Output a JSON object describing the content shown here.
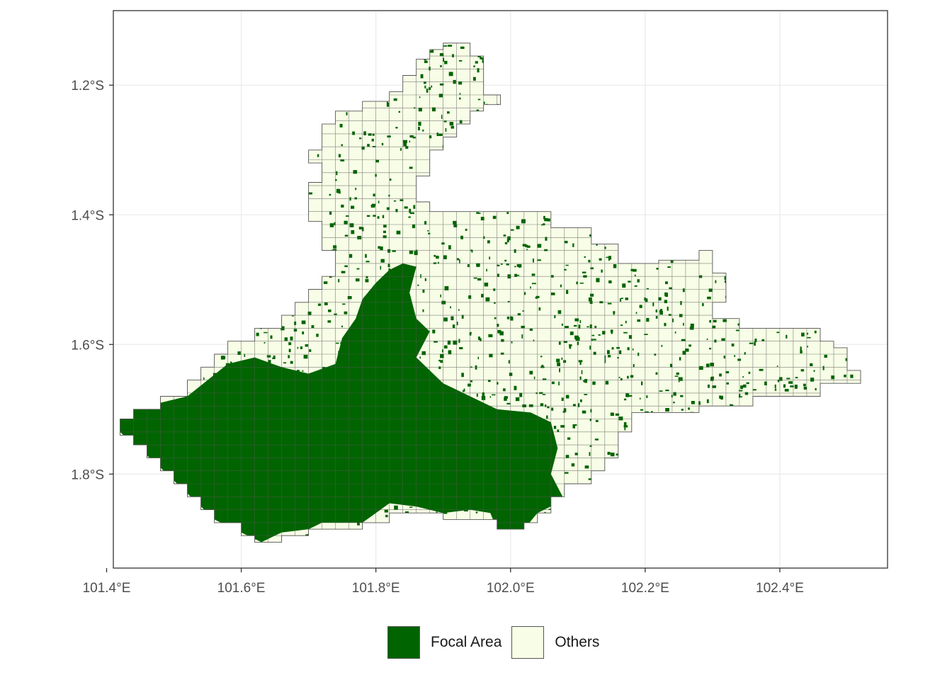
{
  "chart_data": {
    "type": "map",
    "map_type": "grid-cell choropleth",
    "title": "",
    "xlabel": "",
    "ylabel": "",
    "xlim": [
      101.41,
      102.56
    ],
    "ylim": [
      -1.945,
      -1.085
    ],
    "grid": true,
    "cell_size_deg": 0.02,
    "x_ticks": [
      {
        "value": 101.4,
        "label": "101.4°E"
      },
      {
        "value": 101.6,
        "label": "101.6°E"
      },
      {
        "value": 101.8,
        "label": "101.8°E"
      },
      {
        "value": 102.0,
        "label": "102.0°E"
      },
      {
        "value": 102.2,
        "label": "102.2°E"
      },
      {
        "value": 102.4,
        "label": "102.4°E"
      }
    ],
    "y_ticks": [
      {
        "value": -1.2,
        "label": "1.2°S"
      },
      {
        "value": -1.4,
        "label": "1.4°S"
      },
      {
        "value": -1.6,
        "label": "1.6°S"
      },
      {
        "value": -1.8,
        "label": "1.8°S"
      }
    ],
    "outline_polygon": [
      [
        101.9,
        -1.135
      ],
      [
        101.94,
        -1.135
      ],
      [
        101.94,
        -1.155
      ],
      [
        101.96,
        -1.155
      ],
      [
        101.96,
        -1.215
      ],
      [
        101.985,
        -1.215
      ],
      [
        101.985,
        -1.23
      ],
      [
        101.96,
        -1.23
      ],
      [
        101.96,
        -1.24
      ],
      [
        101.94,
        -1.24
      ],
      [
        101.94,
        -1.26
      ],
      [
        101.92,
        -1.26
      ],
      [
        101.92,
        -1.28
      ],
      [
        101.9,
        -1.28
      ],
      [
        101.9,
        -1.3
      ],
      [
        101.88,
        -1.3
      ],
      [
        101.88,
        -1.34
      ],
      [
        101.86,
        -1.34
      ],
      [
        101.86,
        -1.38
      ],
      [
        101.88,
        -1.38
      ],
      [
        101.88,
        -1.395
      ],
      [
        102.06,
        -1.395
      ],
      [
        102.06,
        -1.42
      ],
      [
        102.12,
        -1.42
      ],
      [
        102.12,
        -1.445
      ],
      [
        102.16,
        -1.445
      ],
      [
        102.16,
        -1.475
      ],
      [
        102.22,
        -1.475
      ],
      [
        102.22,
        -1.47
      ],
      [
        102.28,
        -1.47
      ],
      [
        102.28,
        -1.455
      ],
      [
        102.3,
        -1.455
      ],
      [
        102.3,
        -1.49
      ],
      [
        102.32,
        -1.49
      ],
      [
        102.32,
        -1.535
      ],
      [
        102.3,
        -1.535
      ],
      [
        102.3,
        -1.56
      ],
      [
        102.34,
        -1.56
      ],
      [
        102.34,
        -1.575
      ],
      [
        102.46,
        -1.575
      ],
      [
        102.46,
        -1.595
      ],
      [
        102.48,
        -1.595
      ],
      [
        102.48,
        -1.605
      ],
      [
        102.5,
        -1.605
      ],
      [
        102.5,
        -1.64
      ],
      [
        102.52,
        -1.64
      ],
      [
        102.52,
        -1.66
      ],
      [
        102.46,
        -1.66
      ],
      [
        102.46,
        -1.68
      ],
      [
        102.36,
        -1.68
      ],
      [
        102.36,
        -1.695
      ],
      [
        102.28,
        -1.695
      ],
      [
        102.28,
        -1.705
      ],
      [
        102.18,
        -1.705
      ],
      [
        102.18,
        -1.735
      ],
      [
        102.16,
        -1.735
      ],
      [
        102.16,
        -1.775
      ],
      [
        102.14,
        -1.775
      ],
      [
        102.14,
        -1.795
      ],
      [
        102.12,
        -1.795
      ],
      [
        102.12,
        -1.815
      ],
      [
        102.08,
        -1.815
      ],
      [
        102.08,
        -1.835
      ],
      [
        102.06,
        -1.835
      ],
      [
        102.06,
        -1.86
      ],
      [
        102.04,
        -1.86
      ],
      [
        102.04,
        -1.875
      ],
      [
        102.02,
        -1.875
      ],
      [
        102.02,
        -1.885
      ],
      [
        101.98,
        -1.885
      ],
      [
        101.98,
        -1.87
      ],
      [
        101.9,
        -1.87
      ],
      [
        101.9,
        -1.86
      ],
      [
        101.82,
        -1.86
      ],
      [
        101.82,
        -1.875
      ],
      [
        101.78,
        -1.875
      ],
      [
        101.78,
        -1.885
      ],
      [
        101.7,
        -1.885
      ],
      [
        101.7,
        -1.895
      ],
      [
        101.66,
        -1.895
      ],
      [
        101.66,
        -1.905
      ],
      [
        101.62,
        -1.905
      ],
      [
        101.62,
        -1.895
      ],
      [
        101.6,
        -1.895
      ],
      [
        101.6,
        -1.875
      ],
      [
        101.56,
        -1.875
      ],
      [
        101.56,
        -1.855
      ],
      [
        101.54,
        -1.855
      ],
      [
        101.54,
        -1.835
      ],
      [
        101.52,
        -1.835
      ],
      [
        101.52,
        -1.815
      ],
      [
        101.5,
        -1.815
      ],
      [
        101.5,
        -1.795
      ],
      [
        101.48,
        -1.795
      ],
      [
        101.48,
        -1.775
      ],
      [
        101.46,
        -1.775
      ],
      [
        101.46,
        -1.755
      ],
      [
        101.44,
        -1.755
      ],
      [
        101.44,
        -1.74
      ],
      [
        101.42,
        -1.74
      ],
      [
        101.42,
        -1.715
      ],
      [
        101.44,
        -1.715
      ],
      [
        101.44,
        -1.7
      ],
      [
        101.48,
        -1.7
      ],
      [
        101.48,
        -1.68
      ],
      [
        101.52,
        -1.68
      ],
      [
        101.52,
        -1.655
      ],
      [
        101.54,
        -1.655
      ],
      [
        101.54,
        -1.635
      ],
      [
        101.56,
        -1.635
      ],
      [
        101.56,
        -1.615
      ],
      [
        101.58,
        -1.615
      ],
      [
        101.58,
        -1.595
      ],
      [
        101.62,
        -1.595
      ],
      [
        101.62,
        -1.575
      ],
      [
        101.66,
        -1.575
      ],
      [
        101.66,
        -1.555
      ],
      [
        101.68,
        -1.555
      ],
      [
        101.68,
        -1.535
      ],
      [
        101.7,
        -1.535
      ],
      [
        101.7,
        -1.515
      ],
      [
        101.72,
        -1.515
      ],
      [
        101.72,
        -1.495
      ],
      [
        101.74,
        -1.495
      ],
      [
        101.74,
        -1.455
      ],
      [
        101.72,
        -1.455
      ],
      [
        101.72,
        -1.41
      ],
      [
        101.7,
        -1.41
      ],
      [
        101.7,
        -1.35
      ],
      [
        101.72,
        -1.35
      ],
      [
        101.72,
        -1.32
      ],
      [
        101.7,
        -1.32
      ],
      [
        101.7,
        -1.3
      ],
      [
        101.72,
        -1.3
      ],
      [
        101.72,
        -1.26
      ],
      [
        101.74,
        -1.26
      ],
      [
        101.74,
        -1.24
      ],
      [
        101.78,
        -1.24
      ],
      [
        101.78,
        -1.225
      ],
      [
        101.82,
        -1.225
      ],
      [
        101.82,
        -1.21
      ],
      [
        101.84,
        -1.21
      ],
      [
        101.84,
        -1.185
      ],
      [
        101.86,
        -1.185
      ],
      [
        101.86,
        -1.16
      ],
      [
        101.88,
        -1.16
      ],
      [
        101.88,
        -1.145
      ],
      [
        101.9,
        -1.145
      ]
    ],
    "focal_area_polygon": [
      [
        101.42,
        -1.715
      ],
      [
        101.44,
        -1.7
      ],
      [
        101.48,
        -1.69
      ],
      [
        101.52,
        -1.68
      ],
      [
        101.55,
        -1.655
      ],
      [
        101.58,
        -1.63
      ],
      [
        101.62,
        -1.62
      ],
      [
        101.66,
        -1.635
      ],
      [
        101.7,
        -1.645
      ],
      [
        101.74,
        -1.63
      ],
      [
        101.75,
        -1.59
      ],
      [
        101.77,
        -1.56
      ],
      [
        101.78,
        -1.53
      ],
      [
        101.8,
        -1.505
      ],
      [
        101.82,
        -1.485
      ],
      [
        101.84,
        -1.475
      ],
      [
        101.86,
        -1.48
      ],
      [
        101.85,
        -1.52
      ],
      [
        101.86,
        -1.56
      ],
      [
        101.88,
        -1.58
      ],
      [
        101.86,
        -1.62
      ],
      [
        101.9,
        -1.66
      ],
      [
        101.94,
        -1.68
      ],
      [
        101.98,
        -1.7
      ],
      [
        102.03,
        -1.705
      ],
      [
        102.06,
        -1.72
      ],
      [
        102.07,
        -1.76
      ],
      [
        102.06,
        -1.8
      ],
      [
        102.08,
        -1.84
      ],
      [
        102.04,
        -1.86
      ],
      [
        102.02,
        -1.885
      ],
      [
        101.98,
        -1.885
      ],
      [
        101.97,
        -1.86
      ],
      [
        101.94,
        -1.855
      ],
      [
        101.9,
        -1.86
      ],
      [
        101.86,
        -1.85
      ],
      [
        101.82,
        -1.845
      ],
      [
        101.8,
        -1.86
      ],
      [
        101.78,
        -1.875
      ],
      [
        101.72,
        -1.875
      ],
      [
        101.7,
        -1.885
      ],
      [
        101.66,
        -1.89
      ],
      [
        101.63,
        -1.905
      ],
      [
        101.6,
        -1.89
      ],
      [
        101.56,
        -1.87
      ],
      [
        101.53,
        -1.84
      ],
      [
        101.5,
        -1.81
      ],
      [
        101.47,
        -1.78
      ],
      [
        101.44,
        -1.755
      ],
      [
        101.42,
        -1.735
      ]
    ]
  },
  "legend": {
    "items": [
      {
        "label": "Focal Area",
        "color": "#006400"
      },
      {
        "label": "Others",
        "color": "#f7fde6"
      }
    ]
  },
  "colors": {
    "focal": "#006400",
    "others": "#f7fde6",
    "cell_border": "#555555",
    "panel_border": "#333333",
    "gridline": "#ebebeb",
    "tick_label": "#4d4d4d"
  }
}
